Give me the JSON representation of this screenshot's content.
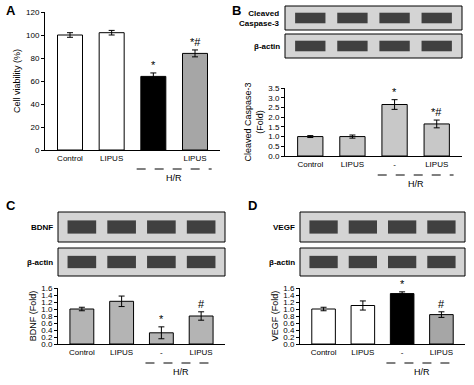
{
  "chart_data": [
    {
      "type": "bar",
      "title": "A",
      "categories": [
        "Control",
        "LIPUS",
        null,
        "LIPUS"
      ],
      "values": [
        100,
        102,
        64,
        84
      ],
      "errors": [
        2,
        2,
        3,
        3
      ],
      "significance": [
        null,
        null,
        "*",
        "*#"
      ],
      "colors": [
        "#ffffff",
        "#ffffff",
        "#000000",
        "#a6a6a6"
      ],
      "y_label": "Cell viability (%)",
      "ylim": [
        0,
        120
      ],
      "yticks": [
        0,
        20,
        40,
        60,
        80,
        100,
        120
      ],
      "annotations": [
        {
          "text": "H/R",
          "span": [
            2,
            3
          ]
        }
      ],
      "grid": false
    },
    {
      "type": "bar",
      "title": "B",
      "categories": [
        "Control",
        "LIPUS",
        "-",
        "LIPUS"
      ],
      "values": [
        1.0,
        1.0,
        2.65,
        1.65
      ],
      "errors": [
        0.05,
        0.08,
        0.25,
        0.2
      ],
      "significance": [
        null,
        null,
        "*",
        "*#"
      ],
      "colors": [
        "#c8c8c8",
        "#c8c8c8",
        "#c8c8c8",
        "#c8c8c8"
      ],
      "y_label": "Cleaved Caspase-3\n(Fold)",
      "ylim": [
        0,
        3.5
      ],
      "yticks": [
        {
          "value": 0,
          "label": "0.0"
        },
        0.5,
        {
          "value": 1,
          "label": "1.0"
        },
        1.5,
        {
          "value": 2,
          "label": "2.0"
        },
        2.5,
        {
          "value": 3,
          "label": "3.0"
        },
        3.5
      ],
      "blot_labels": [
        "Cleaved\nCaspase-3",
        "β-actin"
      ],
      "annotations": [
        {
          "text": "H/R",
          "span": [
            2,
            3
          ]
        }
      ],
      "grid": false
    },
    {
      "type": "bar",
      "title": "C",
      "categories": [
        "Control",
        "LIPUS",
        "-",
        "LIPUS"
      ],
      "values": [
        1.0,
        1.22,
        0.32,
        0.8
      ],
      "errors": [
        0.05,
        0.15,
        0.17,
        0.12
      ],
      "significance": [
        null,
        null,
        "*",
        "#"
      ],
      "colors": [
        "#b4b4b4",
        "#b4b4b4",
        "#b4b4b4",
        "#b4b4b4"
      ],
      "y_label": "BDNF (Fold)",
      "ylim": [
        0,
        1.6
      ],
      "yticks": [
        {
          "value": 0,
          "label": "0.0"
        },
        0.2,
        0.4,
        0.6,
        0.8,
        {
          "value": 1,
          "label": "1.0"
        },
        1.2,
        1.4,
        1.6
      ],
      "blot_labels": [
        "BDNF",
        "β-actin"
      ],
      "annotations": [
        {
          "text": "H/R",
          "span": [
            2,
            3
          ]
        }
      ],
      "grid": false
    },
    {
      "type": "bar",
      "title": "D",
      "categories": [
        "Control",
        "LIPUS",
        "-",
        "LIPUS"
      ],
      "values": [
        1.0,
        1.1,
        1.44,
        0.84
      ],
      "errors": [
        0.05,
        0.13,
        0.05,
        0.08
      ],
      "significance": [
        null,
        null,
        "*",
        "#"
      ],
      "colors": [
        "#ffffff",
        "#ffffff",
        "#000000",
        "#a6a6a6"
      ],
      "y_label": "VEGF (Fold)",
      "ylim": [
        0,
        1.6
      ],
      "yticks": [
        {
          "value": 0,
          "label": "0.0"
        },
        0.2,
        0.4,
        0.6,
        0.8,
        {
          "value": 1,
          "label": "1.0"
        },
        1.2,
        1.4,
        1.6
      ],
      "blot_labels": [
        "VEGF",
        "β-actin"
      ],
      "annotations": [
        {
          "text": "H/R",
          "span": [
            2,
            3
          ]
        }
      ],
      "grid": false
    }
  ]
}
